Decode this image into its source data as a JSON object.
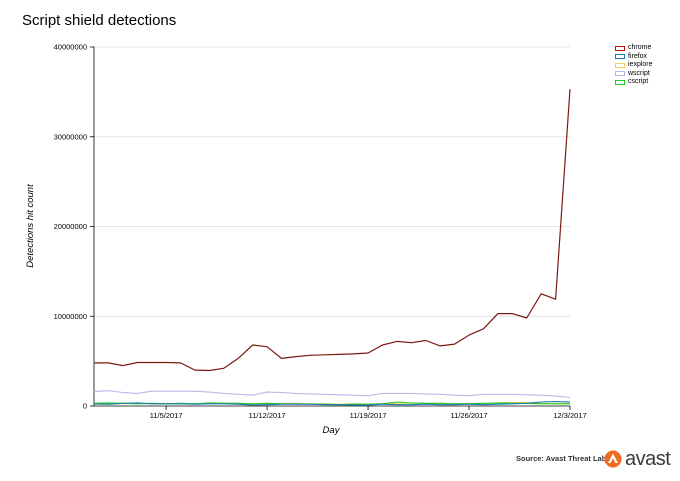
{
  "chart_data": {
    "type": "line",
    "title": "Script shield detections",
    "xlabel": "Day",
    "ylabel": "Detections hit count",
    "ylim": [
      0,
      40000000
    ],
    "yticks": [
      "0",
      "10000000",
      "20000000",
      "30000000",
      "40000000"
    ],
    "y_tick_values": [
      0,
      10000000,
      20000000,
      30000000,
      40000000
    ],
    "xlim": [
      "2017-10-31",
      "2017-12-03"
    ],
    "xticks": [
      "11/5/2017",
      "11/12/2017",
      "11/19/2017",
      "11/26/2017",
      "12/3/2017"
    ],
    "x_tick_dates": [
      "2017-11-05",
      "2017-11-12",
      "2017-11-19",
      "2017-11-26",
      "2017-12-03"
    ],
    "grid": "horizontal",
    "legend_position": "top-right",
    "x": [
      "2017-10-31",
      "2017-11-01",
      "2017-11-02",
      "2017-11-03",
      "2017-11-04",
      "2017-11-05",
      "2017-11-06",
      "2017-11-07",
      "2017-11-08",
      "2017-11-09",
      "2017-11-10",
      "2017-11-11",
      "2017-11-12",
      "2017-11-13",
      "2017-11-14",
      "2017-11-15",
      "2017-11-16",
      "2017-11-17",
      "2017-11-18",
      "2017-11-19",
      "2017-11-20",
      "2017-11-21",
      "2017-11-22",
      "2017-11-23",
      "2017-11-24",
      "2017-11-25",
      "2017-11-26",
      "2017-11-27",
      "2017-11-28",
      "2017-11-29",
      "2017-11-30",
      "2017-12-01",
      "2017-12-02",
      "2017-12-03"
    ],
    "series": [
      {
        "name": "chrome",
        "color": "#cc1010",
        "line_color": "#7a1a10",
        "values": [
          4800000,
          4800000,
          4500000,
          4850000,
          4850000,
          4850000,
          4800000,
          4000000,
          3950000,
          4200000,
          5300000,
          6800000,
          6600000,
          5300000,
          5500000,
          5650000,
          5700000,
          5750000,
          5800000,
          5900000,
          6800000,
          7200000,
          7050000,
          7300000,
          6700000,
          6900000,
          7900000,
          8600000,
          10300000,
          10300000,
          9800000,
          12500000,
          11900000,
          35300000
        ]
      },
      {
        "name": "firefox",
        "color": "#1a7ab8",
        "values": [
          250000,
          200000,
          300000,
          350000,
          250000,
          250000,
          250000,
          200000,
          250000,
          250000,
          200000,
          100000,
          150000,
          200000,
          200000,
          200000,
          150000,
          150000,
          100000,
          100000,
          200000,
          150000,
          150000,
          200000,
          150000,
          150000,
          200000,
          150000,
          200000,
          250000,
          300000,
          450000,
          500000,
          450000
        ]
      },
      {
        "name": "iexplore",
        "color": "#f0d060",
        "values": [
          200000,
          200000,
          250000,
          300000,
          250000,
          300000,
          250000,
          250000,
          300000,
          350000,
          300000,
          200000,
          250000,
          300000,
          300000,
          250000,
          250000,
          200000,
          250000,
          200000,
          250000,
          300000,
          350000,
          300000,
          300000,
          250000,
          300000,
          300000,
          350000,
          400000,
          400000,
          300000,
          300000,
          300000
        ]
      },
      {
        "name": "wscript",
        "color": "#b8b8e8",
        "values": [
          1600000,
          1700000,
          1500000,
          1400000,
          1650000,
          1650000,
          1650000,
          1650000,
          1550000,
          1400000,
          1300000,
          1200000,
          1550000,
          1500000,
          1400000,
          1350000,
          1300000,
          1250000,
          1200000,
          1150000,
          1400000,
          1400000,
          1400000,
          1350000,
          1300000,
          1200000,
          1150000,
          1300000,
          1300000,
          1300000,
          1250000,
          1200000,
          1100000,
          950000
        ]
      },
      {
        "name": "cscript",
        "color": "#22cc22",
        "values": [
          300000,
          350000,
          300000,
          250000,
          300000,
          250000,
          300000,
          250000,
          350000,
          300000,
          300000,
          250000,
          300000,
          250000,
          250000,
          200000,
          200000,
          150000,
          200000,
          200000,
          250000,
          450000,
          350000,
          300000,
          300000,
          250000,
          250000,
          300000,
          350000,
          300000,
          300000,
          250000,
          250000,
          250000
        ]
      }
    ]
  },
  "footer": {
    "source": "Source: Avast Threat Labs",
    "logo_text": "avast"
  }
}
